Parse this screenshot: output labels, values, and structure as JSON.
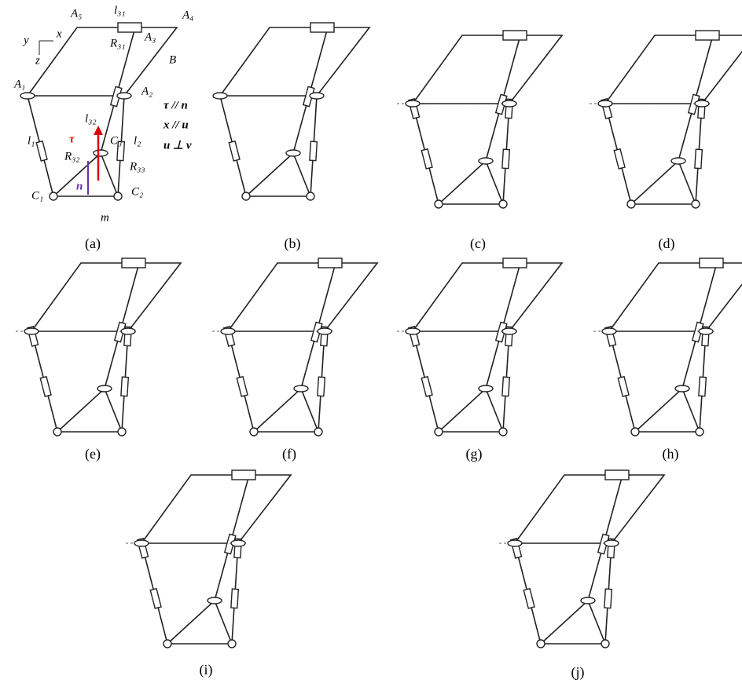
{
  "labels": [
    {
      "text": "A₅"
    },
    {
      "text": "l₃₁"
    },
    {
      "text": "A₄"
    },
    {
      "text": "x"
    },
    {
      "text": "y"
    },
    {
      "text": "z"
    },
    {
      "text": "R₃₁"
    },
    {
      "text": "A₃"
    },
    {
      "text": "B"
    },
    {
      "text": "A₁"
    },
    {
      "text": "A₂"
    },
    {
      "text": "τ // n"
    },
    {
      "text": "x // u"
    },
    {
      "text": "u ⊥ v"
    },
    {
      "text": "l₃₂"
    },
    {
      "text": "C₃"
    },
    {
      "text": "l₁"
    },
    {
      "text": "l₂"
    },
    {
      "text": "τ"
    },
    {
      "text": "R₃₂"
    },
    {
      "text": "R₃₃"
    },
    {
      "text": "n"
    },
    {
      "text": "C₁"
    },
    {
      "text": "C₂"
    },
    {
      "text": "m"
    }
  ],
  "captions": [
    "(a)",
    "(b)",
    "(c)",
    "(d)",
    "(e)",
    "(f)",
    "(g)",
    "(h)",
    "(i)",
    "(j)"
  ]
}
